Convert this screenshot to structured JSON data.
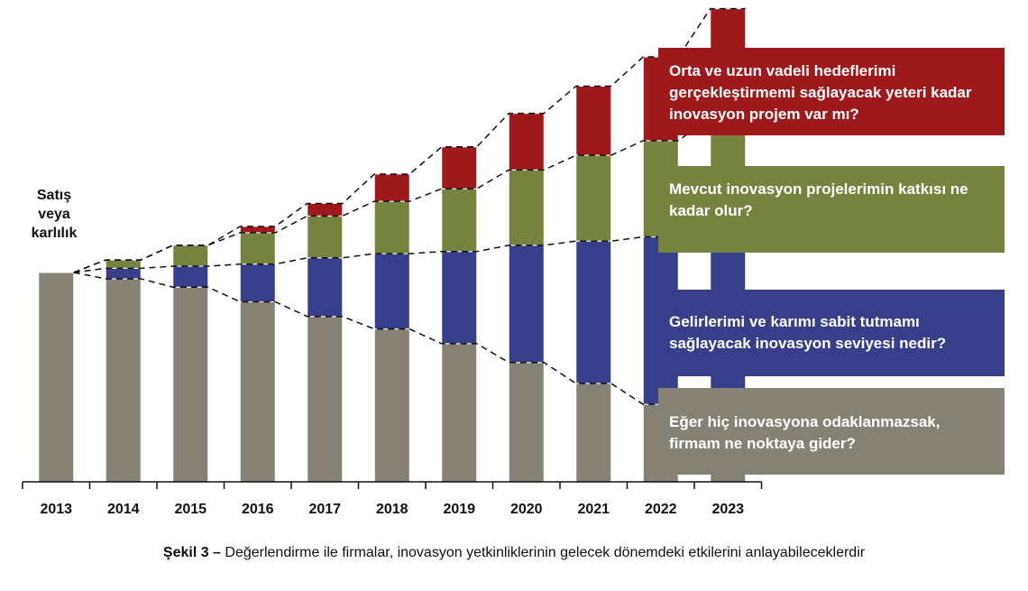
{
  "chart_data": {
    "type": "bar",
    "stacked": true,
    "ylabel": "Satış veya karlılık",
    "categories": [
      "2013",
      "2014",
      "2015",
      "2016",
      "2017",
      "2018",
      "2019",
      "2020",
      "2021",
      "2022",
      "2023"
    ],
    "series": [
      {
        "key": "gray",
        "values": [
          100,
          97,
          93,
          86,
          79,
          73,
          66,
          57,
          47,
          37,
          30
        ],
        "color": "#858174"
      },
      {
        "key": "blue",
        "values": [
          0,
          5,
          10,
          18,
          28,
          36,
          44,
          56,
          68,
          80,
          92
        ],
        "color": "#383F8A"
      },
      {
        "key": "green",
        "values": [
          0,
          4,
          10,
          15,
          20,
          25,
          30,
          36,
          41,
          46,
          52
        ],
        "color": "#76833F"
      },
      {
        "key": "red",
        "values": [
          0,
          0,
          0,
          3,
          6,
          13,
          20,
          27,
          33,
          40,
          52
        ],
        "color": "#9E191B"
      }
    ],
    "grid": false,
    "legend": "none"
  },
  "ylabel_lines": [
    "Satış",
    "veya",
    "karlılık"
  ],
  "callouts": [
    {
      "text": "Orta ve uzun vadeli hedeflerimi gerçekleştirmemi sağlayacak yeteri kadar inovasyon projem var mı?",
      "color": "#9E191B"
    },
    {
      "text": "Mevcut inovasyon projelerimin katkısı ne kadar olur?",
      "color": "#76833F"
    },
    {
      "text": "Gelirlerimi ve karımı sabit tutmamı sağlayacak inovasyon seviyesi nedir?",
      "color": "#383F8A"
    },
    {
      "text": "Eğer hiç inovasyona odaklanmazsak, firmam ne noktaya gider?",
      "color": "#858174"
    }
  ],
  "caption": {
    "bold": "Şekil 3 –",
    "text": " Değerlendirme  ile firmalar, inovasyon yetkinliklerinin  gelecek dönemdeki etkilerini anlayabileceklerdir"
  }
}
